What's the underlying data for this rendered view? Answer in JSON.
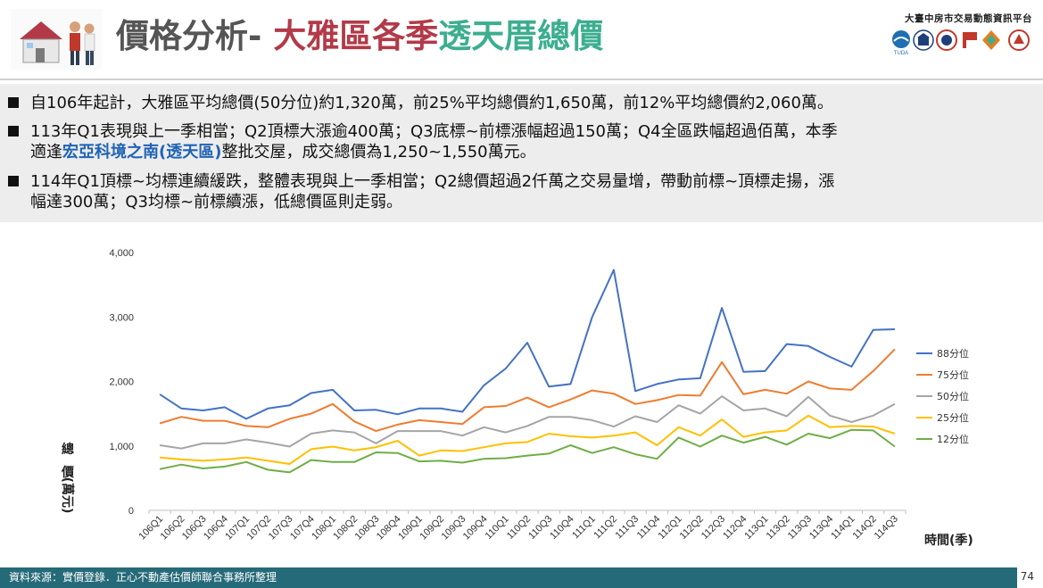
{
  "header": {
    "title_part1": "價格分析- ",
    "title_part2": "大雅區各季",
    "title_part3": "透天厝總價",
    "org_name": "大臺中房市交易動態資訊平台",
    "logos": [
      "tuda-logo",
      "building-logo",
      "seal-logo",
      "flag-logo",
      "diamond-logo",
      "circle-logo"
    ]
  },
  "bullets": [
    {
      "text": "自106年起計，大雅區平均總價(50分位)約1,320萬，前25%平均總價約1,650萬，前12%平均總價約2,060萬。"
    },
    {
      "line1": "113年Q1表現與上一季相當；Q2頂標大漲逾400萬；Q3底標~前標漲幅超過150萬；Q4全區跌幅超過佰萬，本季",
      "line2_pre": "適逢",
      "line2_hl": "宏亞科境之南(透天區)",
      "line2_post": "整批交屋，成交總價為1,250~1,550萬元。"
    },
    {
      "line1": "114年Q1頂標~均標連續緩跌，整體表現與上一季相當；Q2總價超過2仟萬之交易量增，帶動前標~頂標走揚，漲",
      "line2": "幅達300萬；Q3均標~前標續漲，低總價區則走弱。"
    }
  ],
  "footer": {
    "source": "資料來源：實價登錄．正心不動產估價師聯合事務所整理",
    "page": "74"
  },
  "chart_data": {
    "type": "line",
    "ylabel": "總價(萬元)",
    "xlabel": "時間(季)",
    "ylim": [
      0,
      4000
    ],
    "yticks": [
      0,
      1000,
      2000,
      3000,
      4000
    ],
    "ytick_labels": [
      "0",
      "1,000",
      "2,000",
      "3,000",
      "4,000"
    ],
    "grid": false,
    "legend_position": "right",
    "categories": [
      "106Q1",
      "106Q2",
      "106Q3",
      "106Q4",
      "107Q1",
      "107Q2",
      "107Q3",
      "107Q4",
      "108Q1",
      "108Q2",
      "108Q3",
      "108Q4",
      "109Q1",
      "109Q2",
      "109Q3",
      "109Q4",
      "110Q1",
      "110Q2",
      "110Q3",
      "110Q4",
      "111Q1",
      "111Q2",
      "111Q3",
      "111Q4",
      "112Q1",
      "112Q2",
      "112Q3",
      "112Q4",
      "113Q1",
      "113Q2",
      "113Q3",
      "113Q4",
      "114Q1",
      "114Q2",
      "114Q3"
    ],
    "series": [
      {
        "name": "88分位",
        "color": "#4472c4",
        "values": [
          1800,
          1580,
          1550,
          1600,
          1420,
          1580,
          1630,
          1820,
          1870,
          1550,
          1560,
          1490,
          1580,
          1580,
          1530,
          1940,
          2200,
          2600,
          1920,
          1960,
          3000,
          3730,
          1850,
          1960,
          2030,
          2050,
          3140,
          2150,
          2160,
          2580,
          2550,
          2380,
          2230,
          2800,
          2810
        ]
      },
      {
        "name": "75分位",
        "color": "#ed7d31",
        "values": [
          1350,
          1450,
          1390,
          1390,
          1310,
          1290,
          1420,
          1500,
          1650,
          1380,
          1230,
          1330,
          1400,
          1370,
          1340,
          1600,
          1620,
          1750,
          1600,
          1720,
          1860,
          1810,
          1650,
          1710,
          1790,
          1780,
          2300,
          1800,
          1870,
          1810,
          2000,
          1890,
          1870,
          2160,
          2500
        ]
      },
      {
        "name": "50分位",
        "color": "#a5a5a5",
        "values": [
          1010,
          960,
          1040,
          1040,
          1100,
          1050,
          990,
          1190,
          1240,
          1210,
          1040,
          1230,
          1230,
          1230,
          1160,
          1290,
          1210,
          1310,
          1450,
          1450,
          1400,
          1300,
          1460,
          1370,
          1630,
          1500,
          1770,
          1550,
          1580,
          1460,
          1760,
          1470,
          1370,
          1470,
          1650
        ]
      },
      {
        "name": "25分位",
        "color": "#ffc000",
        "values": [
          820,
          790,
          770,
          790,
          820,
          770,
          720,
          950,
          990,
          930,
          980,
          1080,
          850,
          930,
          920,
          980,
          1040,
          1060,
          1190,
          1150,
          1130,
          1160,
          1210,
          1010,
          1290,
          1160,
          1410,
          1140,
          1210,
          1240,
          1470,
          1290,
          1310,
          1300,
          1190
        ]
      },
      {
        "name": "12分位",
        "color": "#70ad47",
        "values": [
          640,
          710,
          650,
          680,
          750,
          630,
          590,
          780,
          750,
          750,
          900,
          890,
          760,
          770,
          740,
          800,
          810,
          850,
          880,
          1010,
          890,
          980,
          870,
          800,
          1130,
          990,
          1160,
          1050,
          1140,
          1020,
          1190,
          1120,
          1250,
          1240,
          990
        ]
      }
    ]
  }
}
